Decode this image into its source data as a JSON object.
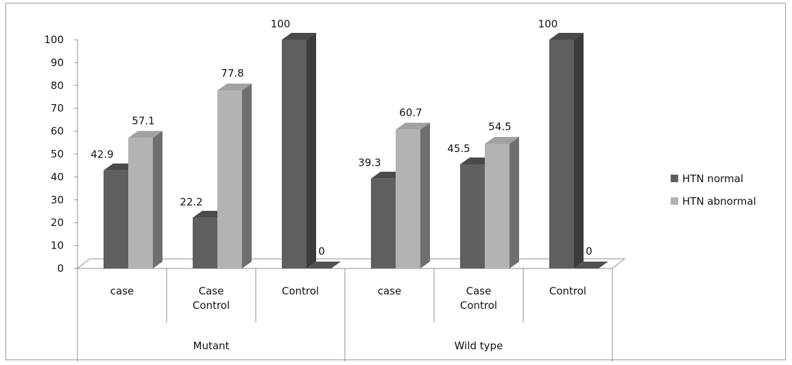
{
  "chart_data": {
    "type": "bar",
    "groups": [
      {
        "label": "Mutant",
        "categories": [
          "case",
          "Case\nControl",
          "Control"
        ]
      },
      {
        "label": "Wild type",
        "categories": [
          "case",
          "Case\nControl",
          "Control"
        ]
      }
    ],
    "series": [
      {
        "name": "HTN normal",
        "color": "#5f5f5f",
        "values": [
          42.9,
          22.2,
          100,
          39.3,
          45.5,
          100
        ]
      },
      {
        "name": "HTN abnormal",
        "color": "#b3b3b3",
        "values": [
          57.1,
          77.8,
          0,
          60.7,
          54.5,
          0
        ]
      }
    ],
    "yticks": [
      0,
      10,
      20,
      30,
      40,
      50,
      60,
      70,
      80,
      90,
      100
    ],
    "ylim": [
      0,
      100
    ],
    "legend_position": "right",
    "grid": false
  }
}
